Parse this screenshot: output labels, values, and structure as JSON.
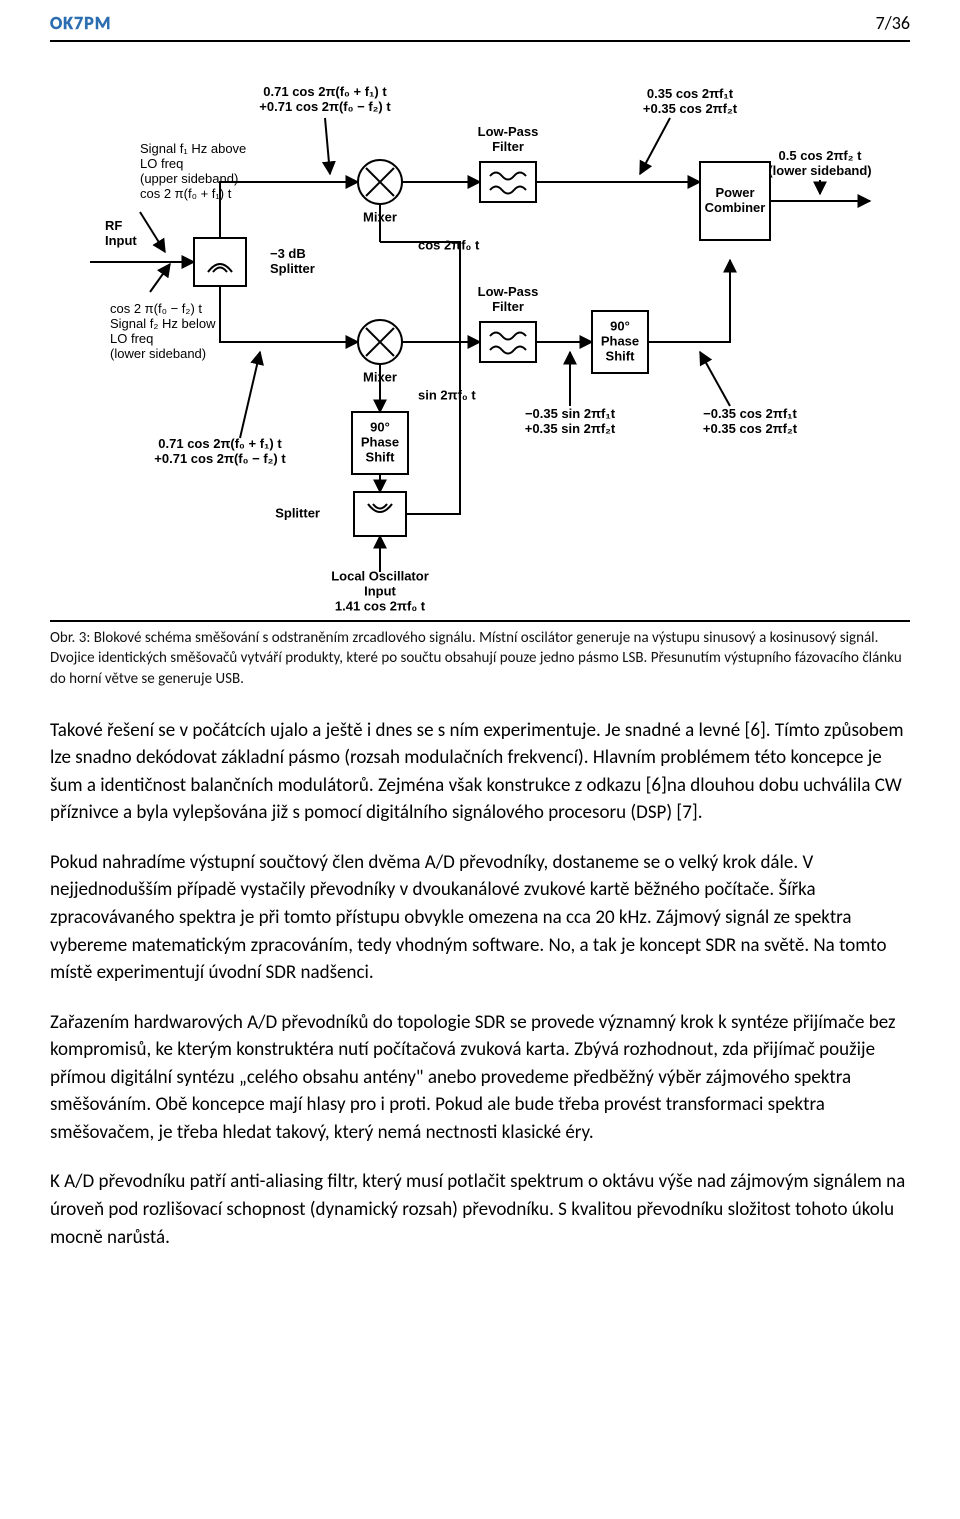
{
  "header": {
    "left": "OK7PM",
    "right": "7/36"
  },
  "diagram": {
    "type": "block-diagram",
    "background_color": "#ffffff",
    "line_color": "#000000",
    "line_width": 2,
    "font_family": "Arial, sans-serif",
    "label_fontsize": 13,
    "block_fontsize": 13,
    "blocks": {
      "splitter3db": {
        "label": "−3 dB\nSplitter"
      },
      "mixer_top": {
        "label": "Mixer"
      },
      "mixer_bot": {
        "label": "Mixer"
      },
      "lpf_top": {
        "label": "Low-Pass\nFilter"
      },
      "lpf_bot": {
        "label": "Low-Pass\nFilter"
      },
      "phase90_r": {
        "label": "90°\nPhase\nShift"
      },
      "phase90_b": {
        "label": "90°\nPhase\nShift"
      },
      "combiner": {
        "label": "Power\nCombiner"
      },
      "lo_splitter": {
        "label": "Splitter"
      },
      "lo_input": {
        "label": "Local Oscillator\nInput\n1.41 cos 2πf₀ t"
      }
    },
    "labels": {
      "rf_input": "RF\nInput",
      "sig_upper": "Signal f₁ Hz above\nLO freq\n(upper sideband)\ncos 2 π(f₀ + f₁) t",
      "sig_lower": "cos 2 π(f₀ − f₂) t\nSignal f₂ Hz below\nLO freq\n(lower sideband)",
      "sum_top": "0.71 cos 2π(f₀ + f₁) t\n+0.71 cos 2π(f₀ − f₂) t",
      "sum_bot": "0.71 cos 2π(f₀ + f₁) t\n+0.71 cos 2π(f₀ − f₂) t",
      "cos_lo": "cos 2πf₀ t",
      "sin_lo": "sin 2πf₀ t",
      "after_lpf_top": "0.35 cos 2πf₁t\n+0.35 cos 2πf₂t",
      "after_lpf_bot": "−0.35 sin 2πf₁t\n+0.35 sin 2πf₂t",
      "out_lower": "0.5 cos 2πf₂ t\n(lower sideband)",
      "after_phase": "−0.35 cos 2πf₁t\n+0.35 cos 2πf₂t"
    }
  },
  "caption": "Obr. 3: Blokové schéma směšování s odstraněním zrcadlového signálu. Místní oscilátor generuje na výstupu sinusový a kosinusový signál. Dvojice identických směšovačů vytváří produkty, které po součtu obsahují pouze jedno pásmo LSB. Přesunutím výstupního fázovacího článku do horní větve se generuje USB.",
  "paragraphs": [
    "Takové řešení se v počátcích ujalo a ještě i dnes se s ním experimentuje. Je snadné a levné [6]. Tímto způsobem lze snadno dekódovat základní pásmo (rozsah modulačních frekvencí). Hlavním problémem této koncepce je šum a identičnost balančních modulátorů. Zejména však konstrukce z odkazu [6]na dlouhou dobu uchválila CW příznivce a byla vylepšována již s pomocí digitálního signálového procesoru (DSP) [7].",
    "Pokud nahradíme výstupní součtový člen dvěma A/D převodníky, dostaneme se o velký krok dále. V nejjednodušším případě vystačily převodníky v dvoukanálové zvukové kartě běžného počítače. Šířka zpracovávaného spektra je při tomto přístupu obvykle omezena na cca 20 kHz. Zájmový signál ze spektra vybereme matematickým zpracováním, tedy vhodným software. No, a tak je koncept SDR na světě. Na tomto místě experimentují úvodní SDR nadšenci.",
    "Zařazením hardwarových A/D převodníků do topologie SDR se provede významný krok k syntéze přijímače bez kompromisů, ke kterým konstruktéra nutí počítačová zvuková karta. Zbývá rozhodnout, zda přijímač použije přímou digitální syntézu „celého obsahu antény\" anebo provedeme předběžný výběr zájmového spektra směšováním. Obě koncepce mají hlasy pro i proti. Pokud ale bude třeba provést transformaci spektra směšovačem, je třeba hledat takový, který nemá nectnosti klasické éry.",
    "K A/D převodníku patří anti-aliasing filtr, který musí potlačit spektrum o oktávu výše nad zájmovým signálem na úroveň pod rozlišovací schopnost (dynamický rozsah) převodníku. S kvalitou převodníku složitost tohoto úkolu mocně narůstá."
  ]
}
